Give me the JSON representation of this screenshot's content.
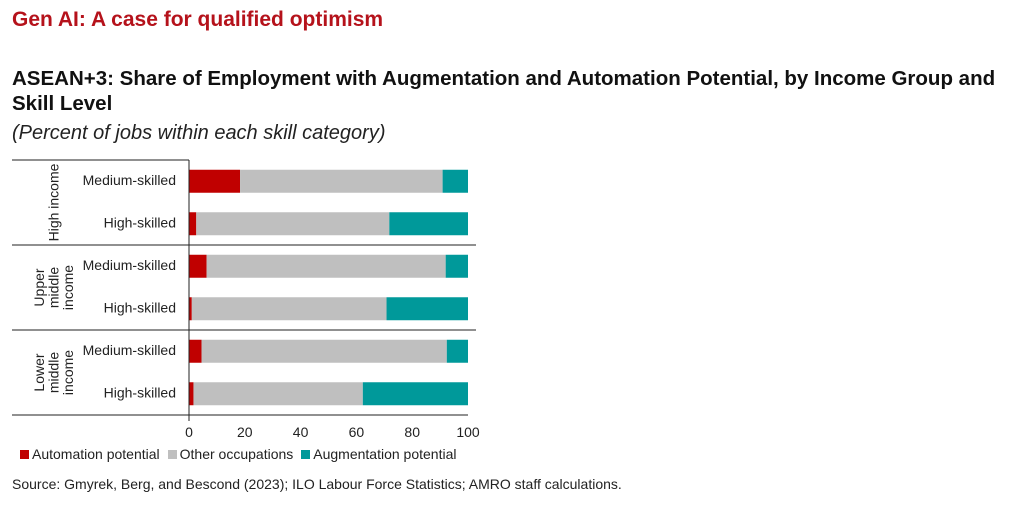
{
  "headline": "Gen AI: A case for qualified optimism",
  "chart_data": {
    "type": "bar",
    "orientation": "horizontal",
    "stacked": true,
    "title": "ASEAN+3: Share of Employment with Augmentation and Automation Potential, by Income Group and Skill Level",
    "subtitle": "(Percent of jobs within each skill category)",
    "xlabel": "",
    "ylabel": "",
    "xlim": [
      0,
      100
    ],
    "xticks": [
      0,
      20,
      40,
      60,
      80,
      100
    ],
    "grid": false,
    "legend_position": "bottom",
    "groups": [
      {
        "label_lines": [
          "High income"
        ],
        "categories": [
          "Medium-skilled",
          "High-skilled"
        ]
      },
      {
        "label_lines": [
          "Upper",
          "middle",
          "income"
        ],
        "categories": [
          "Medium-skilled",
          "High-skilled"
        ]
      },
      {
        "label_lines": [
          "Lower",
          "middle",
          "income"
        ],
        "categories": [
          "Medium-skilled",
          "High-skilled"
        ]
      }
    ],
    "categories": [
      "High income | Medium-skilled",
      "High income | High-skilled",
      "Upper middle income | Medium-skilled",
      "Upper middle income | High-skilled",
      "Lower middle income | Medium-skilled",
      "Lower middle income | High-skilled"
    ],
    "series": [
      {
        "name": "Automation potential",
        "color": "#c00000",
        "values": [
          18.3,
          2.6,
          6.3,
          1.0,
          4.5,
          1.6
        ]
      },
      {
        "name": "Other occupations",
        "color": "#bfbfbf",
        "values": [
          72.6,
          69.2,
          85.7,
          69.8,
          87.9,
          60.7
        ]
      },
      {
        "name": "Augmentation potential",
        "color": "#00999a",
        "values": [
          9.1,
          28.2,
          8.0,
          29.2,
          7.6,
          37.7
        ]
      }
    ]
  },
  "source": "Source: Gmyrek, Berg, and Bescond (2023); ILO Labour Force Statistics; AMRO staff calculations."
}
